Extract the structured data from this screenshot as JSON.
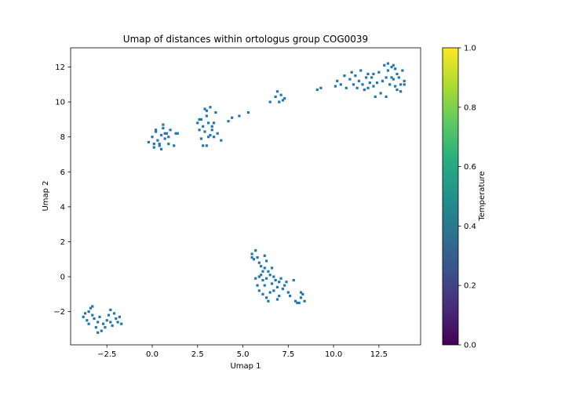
{
  "chart_data": {
    "type": "scatter",
    "title": "Umap of distances within ortologus group COG0039",
    "xlabel": "Umap 1",
    "ylabel": "Umap 2",
    "xlim": [
      -4.5,
      14.8
    ],
    "ylim": [
      -3.9,
      13.1
    ],
    "xticks": [
      0.0,
      2.5,
      5.0,
      7.5,
      10.0,
      12.5
    ],
    "xtick_labels": [
      "0.0",
      "2.5",
      "5.0",
      "7.5",
      "10.0",
      "12.5"
    ],
    "extra_xticks": [
      -2.5
    ],
    "extra_xtick_labels": [
      "−2.5"
    ],
    "yticks": [
      -2,
      0,
      2,
      4,
      6,
      8,
      10,
      12
    ],
    "ytick_labels": [
      "−2",
      "0",
      "2",
      "4",
      "6",
      "8",
      "10",
      "12"
    ],
    "marker_color": "#1f77b4",
    "grid": false,
    "colorbar": {
      "label": "Temperature",
      "range": [
        0.0,
        1.0
      ],
      "ticks": [
        0.0,
        0.2,
        0.4,
        0.6,
        0.8,
        1.0
      ],
      "tick_labels": [
        "0.0",
        "0.2",
        "0.4",
        "0.6",
        "0.8",
        "1.0"
      ],
      "colormap": "viridis"
    },
    "points": [
      [
        -3.7,
        -2.1
      ],
      [
        -3.5,
        -2.0
      ],
      [
        -3.4,
        -1.8
      ],
      [
        -3.3,
        -2.2
      ],
      [
        -3.6,
        -2.5
      ],
      [
        -3.2,
        -2.4
      ],
      [
        -3.0,
        -2.6
      ],
      [
        -2.9,
        -2.3
      ],
      [
        -3.1,
        -2.9
      ],
      [
        -2.8,
        -3.1
      ],
      [
        -2.7,
        -2.7
      ],
      [
        -2.5,
        -2.5
      ],
      [
        -2.4,
        -2.2
      ],
      [
        -2.3,
        -1.9
      ],
      [
        -2.1,
        -2.1
      ],
      [
        -2.0,
        -2.4
      ],
      [
        -1.9,
        -2.6
      ],
      [
        -2.2,
        -2.8
      ],
      [
        -1.8,
        -2.3
      ],
      [
        -1.7,
        -2.7
      ],
      [
        -3.8,
        -2.3
      ],
      [
        -3.5,
        -2.7
      ],
      [
        -3.0,
        -3.2
      ],
      [
        -2.6,
        -2.9
      ],
      [
        -2.3,
        -2.6
      ],
      [
        -3.3,
        -1.7
      ],
      [
        -0.2,
        7.7
      ],
      [
        0.0,
        8.0
      ],
      [
        0.1,
        7.4
      ],
      [
        0.2,
        8.3
      ],
      [
        0.3,
        7.8
      ],
      [
        0.4,
        7.5
      ],
      [
        0.5,
        8.1
      ],
      [
        0.6,
        8.5
      ],
      [
        0.7,
        7.9
      ],
      [
        0.8,
        8.2
      ],
      [
        0.9,
        7.6
      ],
      [
        1.0,
        8.4
      ],
      [
        1.2,
        7.5
      ],
      [
        1.3,
        8.2
      ],
      [
        0.5,
        7.3
      ],
      [
        0.2,
        8.4
      ],
      [
        0.6,
        8.7
      ],
      [
        0.9,
        8.0
      ],
      [
        0.4,
        7.6
      ],
      [
        1.4,
        8.2
      ],
      [
        0.1,
        7.6
      ],
      [
        0.7,
        8.2
      ],
      [
        2.5,
        8.8
      ],
      [
        2.6,
        8.4
      ],
      [
        2.7,
        9.0
      ],
      [
        2.8,
        8.6
      ],
      [
        2.9,
        9.6
      ],
      [
        3.0,
        9.2
      ],
      [
        3.1,
        8.8
      ],
      [
        3.2,
        9.7
      ],
      [
        3.3,
        8.4
      ],
      [
        3.4,
        8.0
      ],
      [
        3.5,
        9.4
      ],
      [
        3.6,
        8.2
      ],
      [
        3.8,
        7.8
      ],
      [
        2.7,
        7.9
      ],
      [
        2.8,
        7.5
      ],
      [
        3.0,
        7.5
      ],
      [
        3.2,
        8.1
      ],
      [
        3.3,
        8.6
      ],
      [
        2.6,
        9.0
      ],
      [
        2.9,
        8.3
      ],
      [
        3.1,
        8.0
      ],
      [
        3.4,
        8.8
      ],
      [
        3.0,
        9.5
      ],
      [
        4.2,
        8.9
      ],
      [
        4.4,
        9.1
      ],
      [
        4.8,
        9.2
      ],
      [
        5.3,
        9.4
      ],
      [
        6.5,
        10.0
      ],
      [
        6.8,
        10.3
      ],
      [
        6.9,
        10.6
      ],
      [
        7.0,
        10.0
      ],
      [
        7.1,
        10.4
      ],
      [
        7.3,
        10.2
      ],
      [
        7.2,
        10.1
      ],
      [
        9.1,
        10.7
      ],
      [
        9.3,
        10.8
      ],
      [
        10.1,
        10.9
      ],
      [
        10.2,
        11.2
      ],
      [
        10.4,
        11.0
      ],
      [
        10.6,
        11.5
      ],
      [
        10.7,
        10.8
      ],
      [
        10.9,
        11.3
      ],
      [
        11.0,
        11.7
      ],
      [
        11.1,
        11.0
      ],
      [
        11.2,
        11.5
      ],
      [
        11.3,
        10.8
      ],
      [
        11.4,
        11.2
      ],
      [
        11.5,
        11.8
      ],
      [
        11.6,
        11.0
      ],
      [
        11.7,
        10.7
      ],
      [
        11.8,
        11.4
      ],
      [
        11.9,
        11.6
      ],
      [
        12.0,
        11.1
      ],
      [
        12.1,
        11.4
      ],
      [
        12.2,
        10.9
      ],
      [
        12.3,
        10.3
      ],
      [
        12.4,
        11.1
      ],
      [
        12.5,
        11.7
      ],
      [
        12.6,
        10.5
      ],
      [
        12.7,
        11.2
      ],
      [
        12.8,
        12.1
      ],
      [
        12.9,
        11.4
      ],
      [
        13.0,
        11.8
      ],
      [
        13.1,
        11.0
      ],
      [
        13.2,
        12.0
      ],
      [
        13.3,
        11.3
      ],
      [
        13.4,
        11.9
      ],
      [
        13.5,
        10.7
      ],
      [
        13.6,
        11.4
      ],
      [
        13.7,
        11.0
      ],
      [
        13.8,
        11.8
      ],
      [
        13.9,
        11.2
      ],
      [
        13.0,
        12.2
      ],
      [
        13.3,
        12.1
      ],
      [
        13.5,
        11.6
      ],
      [
        12.9,
        10.3
      ],
      [
        13.2,
        11.4
      ],
      [
        13.4,
        10.9
      ],
      [
        12.2,
        11.6
      ],
      [
        11.9,
        10.8
      ],
      [
        13.7,
        10.6
      ],
      [
        13.9,
        11.0
      ],
      [
        5.5,
        1.3
      ],
      [
        5.6,
        1.0
      ],
      [
        5.7,
        1.5
      ],
      [
        5.8,
        1.1
      ],
      [
        5.9,
        0.8
      ],
      [
        6.0,
        0.6
      ],
      [
        6.1,
        0.3
      ],
      [
        6.2,
        1.2
      ],
      [
        6.3,
        0.9
      ],
      [
        6.0,
        0.1
      ],
      [
        6.1,
        -0.2
      ],
      [
        6.2,
        -0.5
      ],
      [
        6.3,
        -0.1
      ],
      [
        6.4,
        0.3
      ],
      [
        6.5,
        0.1
      ],
      [
        6.6,
        -0.4
      ],
      [
        6.7,
        0.0
      ],
      [
        6.8,
        -0.2
      ],
      [
        6.9,
        -0.6
      ],
      [
        7.0,
        -0.3
      ],
      [
        7.1,
        -0.1
      ],
      [
        7.2,
        -0.7
      ],
      [
        7.4,
        -0.3
      ],
      [
        7.5,
        -0.9
      ],
      [
        7.6,
        -1.1
      ],
      [
        7.8,
        -0.2
      ],
      [
        7.9,
        -1.4
      ],
      [
        8.0,
        -1.5
      ],
      [
        8.2,
        -1.2
      ],
      [
        8.3,
        -1.0
      ],
      [
        8.4,
        -1.4
      ],
      [
        5.8,
        -0.5
      ],
      [
        5.9,
        -0.8
      ],
      [
        6.1,
        -1.0
      ],
      [
        6.3,
        -1.2
      ],
      [
        6.5,
        -0.9
      ],
      [
        6.4,
        -1.4
      ],
      [
        7.0,
        -1.1
      ],
      [
        6.9,
        -1.3
      ],
      [
        8.1,
        -1.5
      ],
      [
        5.5,
        1.1
      ],
      [
        6.2,
        0.5
      ],
      [
        6.6,
        0.5
      ],
      [
        7.3,
        -0.5
      ],
      [
        5.9,
        0.0
      ],
      [
        6.7,
        -0.8
      ],
      [
        8.2,
        -0.9
      ],
      [
        5.7,
        -0.1
      ]
    ]
  }
}
